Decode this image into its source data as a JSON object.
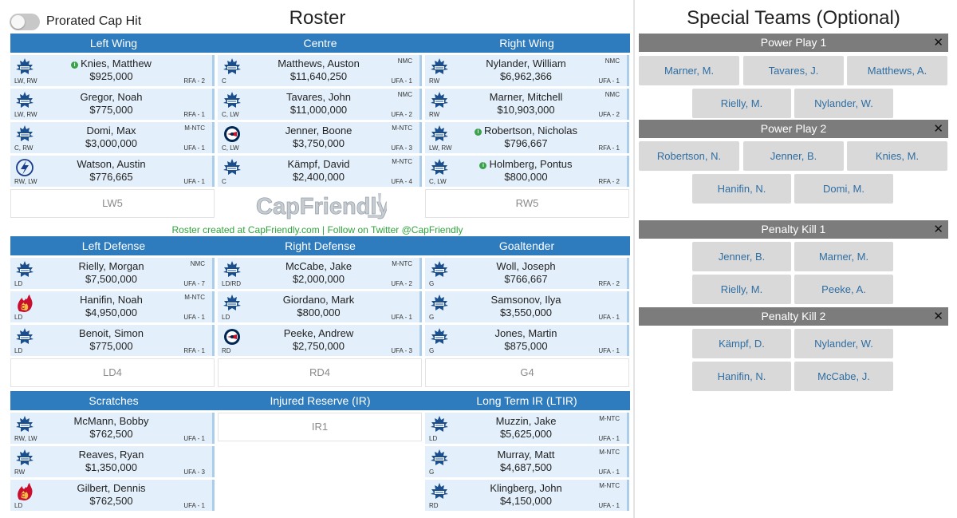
{
  "toggle": {
    "label": "Prorated Cap Hit",
    "on": false
  },
  "roster_title": "Roster",
  "special_title": "Special Teams (Optional)",
  "credit": "Roster created at CapFriendly.com | Follow on Twitter @CapFriendly",
  "brand": "CapFriendly",
  "colors": {
    "header_blue": "#2e7bbd",
    "card_bg": "#e3f0fb",
    "credit_green": "#2fa33b",
    "st_header_gray": "#7c7c7c",
    "st_button_bg": "#d9d9d9",
    "st_button_text": "#2e6ea3"
  },
  "forwards_header": [
    "Left Wing",
    "Centre",
    "Right Wing"
  ],
  "defense_header": [
    "Left Defense",
    "Right Defense",
    "Goaltender"
  ],
  "reserve_header": [
    "Scratches",
    "Injured Reserve (IR)",
    "Long Term IR (LTIR)"
  ],
  "left_wing": [
    {
      "logo": "maple-leaf-logo",
      "info": true,
      "name": "Knies, Matthew",
      "salary": "$925,000",
      "pos": "LW, RW",
      "clause": "",
      "contract": "RFA - 2"
    },
    {
      "logo": "maple-leaf-logo",
      "info": false,
      "name": "Gregor, Noah",
      "salary": "$775,000",
      "pos": "LW, RW",
      "clause": "",
      "contract": "RFA - 1"
    },
    {
      "logo": "maple-leaf-logo",
      "info": false,
      "name": "Domi, Max",
      "salary": "$3,000,000",
      "pos": "C, RW",
      "clause": "M-NTC",
      "contract": "UFA - 1"
    },
    {
      "logo": "lightning-logo",
      "info": false,
      "name": "Watson, Austin",
      "salary": "$776,665",
      "pos": "RW, LW",
      "clause": "",
      "contract": "UFA - 1"
    }
  ],
  "lw_empty": "LW5",
  "centre": [
    {
      "logo": "maple-leaf-logo",
      "info": false,
      "name": "Matthews, Auston",
      "salary": "$11,640,250",
      "pos": "C",
      "clause": "NMC",
      "contract": "UFA - 1"
    },
    {
      "logo": "maple-leaf-logo",
      "info": false,
      "name": "Tavares, John",
      "salary": "$11,000,000",
      "pos": "C, LW",
      "clause": "NMC",
      "contract": "UFA - 2"
    },
    {
      "logo": "blue-jackets-logo",
      "info": false,
      "name": "Jenner, Boone",
      "salary": "$3,750,000",
      "pos": "C, LW",
      "clause": "M-NTC",
      "contract": "UFA - 3"
    },
    {
      "logo": "maple-leaf-logo",
      "info": false,
      "name": "Kämpf, David",
      "salary": "$2,400,000",
      "pos": "C",
      "clause": "M-NTC",
      "contract": "UFA - 4"
    }
  ],
  "right_wing": [
    {
      "logo": "maple-leaf-logo",
      "info": false,
      "name": "Nylander, William",
      "salary": "$6,962,366",
      "pos": "RW",
      "clause": "NMC",
      "contract": "UFA - 1"
    },
    {
      "logo": "maple-leaf-logo",
      "info": false,
      "name": "Marner, Mitchell",
      "salary": "$10,903,000",
      "pos": "RW",
      "clause": "NMC",
      "contract": "UFA - 2"
    },
    {
      "logo": "maple-leaf-logo",
      "info": true,
      "name": "Robertson, Nicholas",
      "salary": "$796,667",
      "pos": "LW, RW",
      "clause": "",
      "contract": "RFA - 1"
    },
    {
      "logo": "maple-leaf-logo",
      "info": true,
      "name": "Holmberg, Pontus",
      "salary": "$800,000",
      "pos": "C, LW",
      "clause": "",
      "contract": "RFA - 2"
    }
  ],
  "rw_empty": "RW5",
  "left_defense": [
    {
      "logo": "maple-leaf-logo",
      "info": false,
      "name": "Rielly, Morgan",
      "salary": "$7,500,000",
      "pos": "LD",
      "clause": "NMC",
      "contract": "UFA - 7"
    },
    {
      "logo": "flames-logo",
      "info": false,
      "name": "Hanifin, Noah",
      "salary": "$4,950,000",
      "pos": "LD",
      "clause": "M-NTC",
      "contract": "UFA - 1"
    },
    {
      "logo": "maple-leaf-logo",
      "info": false,
      "name": "Benoit, Simon",
      "salary": "$775,000",
      "pos": "LD",
      "clause": "",
      "contract": "RFA - 1"
    }
  ],
  "ld_empty": "LD4",
  "right_defense": [
    {
      "logo": "maple-leaf-logo",
      "info": false,
      "name": "McCabe, Jake",
      "salary": "$2,000,000",
      "pos": "LD/RD",
      "clause": "M-NTC",
      "contract": "UFA - 2"
    },
    {
      "logo": "maple-leaf-logo",
      "info": false,
      "name": "Giordano, Mark",
      "salary": "$800,000",
      "pos": "LD",
      "clause": "",
      "contract": "UFA - 1"
    },
    {
      "logo": "blue-jackets-logo",
      "info": false,
      "name": "Peeke, Andrew",
      "salary": "$2,750,000",
      "pos": "RD",
      "clause": "",
      "contract": "UFA - 3"
    }
  ],
  "rd_empty": "RD4",
  "goaltender": [
    {
      "logo": "maple-leaf-logo",
      "info": false,
      "name": "Woll, Joseph",
      "salary": "$766,667",
      "pos": "G",
      "clause": "",
      "contract": "RFA - 2"
    },
    {
      "logo": "maple-leaf-logo",
      "info": false,
      "name": "Samsonov, Ilya",
      "salary": "$3,550,000",
      "pos": "G",
      "clause": "",
      "contract": "UFA - 1"
    },
    {
      "logo": "maple-leaf-logo",
      "info": false,
      "name": "Jones, Martin",
      "salary": "$875,000",
      "pos": "G",
      "clause": "",
      "contract": "UFA - 1"
    }
  ],
  "g_empty": "G4",
  "scratches": [
    {
      "logo": "maple-leaf-logo",
      "info": false,
      "name": "McMann, Bobby",
      "salary": "$762,500",
      "pos": "RW, LW",
      "clause": "",
      "contract": "UFA - 1"
    },
    {
      "logo": "maple-leaf-logo",
      "info": false,
      "name": "Reaves, Ryan",
      "salary": "$1,350,000",
      "pos": "RW",
      "clause": "",
      "contract": "UFA - 3"
    },
    {
      "logo": "flames-logo",
      "info": false,
      "name": "Gilbert, Dennis",
      "salary": "$762,500",
      "pos": "LD",
      "clause": "",
      "contract": "UFA - 1"
    }
  ],
  "ir_empty": "IR1",
  "ltir": [
    {
      "logo": "maple-leaf-logo",
      "info": false,
      "name": "Muzzin, Jake",
      "salary": "$5,625,000",
      "pos": "LD",
      "clause": "M-NTC",
      "contract": "UFA - 1"
    },
    {
      "logo": "maple-leaf-logo",
      "info": false,
      "name": "Murray, Matt",
      "salary": "$4,687,500",
      "pos": "G",
      "clause": "M-NTC",
      "contract": "UFA - 1"
    },
    {
      "logo": "maple-leaf-logo",
      "info": false,
      "name": "Klingberg, John",
      "salary": "$4,150,000",
      "pos": "RD",
      "clause": "M-NTC",
      "contract": "UFA - 1"
    }
  ],
  "special_units": [
    {
      "title": "Power Play 1",
      "players": [
        "Marner, M.",
        "Tavares, J.",
        "Matthews, A.",
        "Rielly, M.",
        "Nylander, W."
      ]
    },
    {
      "title": "Power Play 2",
      "players": [
        "Robertson, N.",
        "Jenner, B.",
        "Knies, M.",
        "Hanifin, N.",
        "Domi, M."
      ]
    },
    {
      "title": "Penalty Kill 1",
      "players": [
        "Jenner, B.",
        "Marner, M.",
        "Rielly, M.",
        "Peeke, A."
      ]
    },
    {
      "title": "Penalty Kill 2",
      "players": [
        "Kämpf, D.",
        "Nylander, W.",
        "Hanifin, N.",
        "McCabe, J."
      ]
    }
  ]
}
